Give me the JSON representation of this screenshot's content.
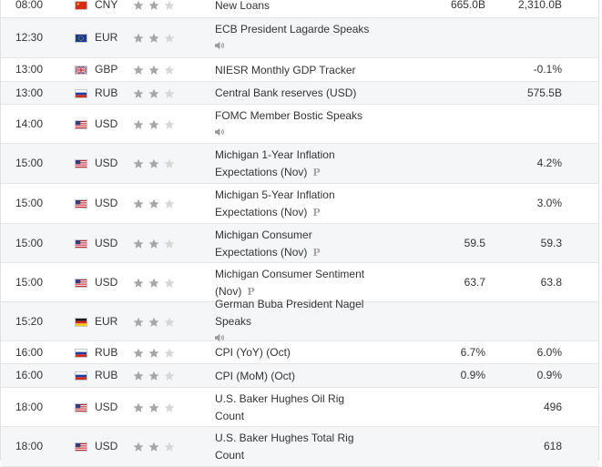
{
  "colors": {
    "star_on": "#a6a6a6",
    "star_off": "#d7d7d7",
    "speaker": "#9a9a9a",
    "row_alt": "#f5f6f8"
  },
  "events": [
    {
      "time": "08:00",
      "flag": "cn-flag-icon",
      "currency": "CNY",
      "importance": 2,
      "lines": [
        "New Loans"
      ],
      "marker": "",
      "actual": "665.0B",
      "previous": "2,310.0B"
    },
    {
      "time": "12:30",
      "flag": "eu-flag-icon",
      "currency": "EUR",
      "importance": 2,
      "lines": [
        "ECB President Lagarde Speaks"
      ],
      "marker": "speaker-icon",
      "actual": "",
      "previous": ""
    },
    {
      "time": "13:00",
      "flag": "gb-flag-icon",
      "currency": "GBP",
      "importance": 2,
      "lines": [
        "NIESR Monthly GDP Tracker"
      ],
      "marker": "",
      "actual": "",
      "previous": "-0.1%"
    },
    {
      "time": "13:00",
      "flag": "ru-flag-icon",
      "currency": "RUB",
      "importance": 2,
      "lines": [
        "Central Bank reserves (USD)"
      ],
      "marker": "",
      "actual": "",
      "previous": "575.5B"
    },
    {
      "time": "14:00",
      "flag": "us-flag-icon",
      "currency": "USD",
      "importance": 2,
      "lines": [
        "FOMC Member Bostic Speaks"
      ],
      "marker": "speaker-icon",
      "actual": "",
      "previous": ""
    },
    {
      "time": "15:00",
      "flag": "us-flag-icon",
      "currency": "USD",
      "importance": 2,
      "lines": [
        "Michigan 1-Year Inflation",
        "Expectations (Nov)"
      ],
      "marker": "P",
      "actual": "",
      "previous": "4.2%"
    },
    {
      "time": "15:00",
      "flag": "us-flag-icon",
      "currency": "USD",
      "importance": 2,
      "lines": [
        "Michigan 5-Year Inflation",
        "Expectations (Nov)"
      ],
      "marker": "P",
      "actual": "",
      "previous": "3.0%"
    },
    {
      "time": "15:00",
      "flag": "us-flag-icon",
      "currency": "USD",
      "importance": 2,
      "lines": [
        "Michigan Consumer",
        "Expectations (Nov)"
      ],
      "marker": "P",
      "actual": "59.5",
      "previous": "59.3"
    },
    {
      "time": "15:00",
      "flag": "us-flag-icon",
      "currency": "USD",
      "importance": 2,
      "lines": [
        "Michigan Consumer Sentiment",
        "(Nov)"
      ],
      "marker": "P",
      "actual": "63.7",
      "previous": "63.8"
    },
    {
      "time": "15:20",
      "flag": "de-flag-icon",
      "currency": "EUR",
      "importance": 2,
      "lines": [
        "German Buba President Nagel",
        "Speaks"
      ],
      "marker": "speaker-icon",
      "actual": "",
      "previous": ""
    },
    {
      "time": "16:00",
      "flag": "ru-flag-icon",
      "currency": "RUB",
      "importance": 2,
      "lines": [
        "CPI (YoY) (Oct)"
      ],
      "marker": "",
      "actual": "6.7%",
      "previous": "6.0%"
    },
    {
      "time": "16:00",
      "flag": "ru-flag-icon",
      "currency": "RUB",
      "importance": 2,
      "lines": [
        "CPI (MoM) (Oct)"
      ],
      "marker": "",
      "actual": "0.9%",
      "previous": "0.9%"
    },
    {
      "time": "18:00",
      "flag": "us-flag-icon",
      "currency": "USD",
      "importance": 2,
      "lines": [
        "U.S. Baker Hughes Oil Rig",
        "Count"
      ],
      "marker": "",
      "actual": "",
      "previous": "496"
    },
    {
      "time": "18:00",
      "flag": "us-flag-icon",
      "currency": "USD",
      "importance": 2,
      "lines": [
        "U.S. Baker Hughes Total Rig",
        "Count"
      ],
      "marker": "",
      "actual": "",
      "previous": "618"
    }
  ]
}
